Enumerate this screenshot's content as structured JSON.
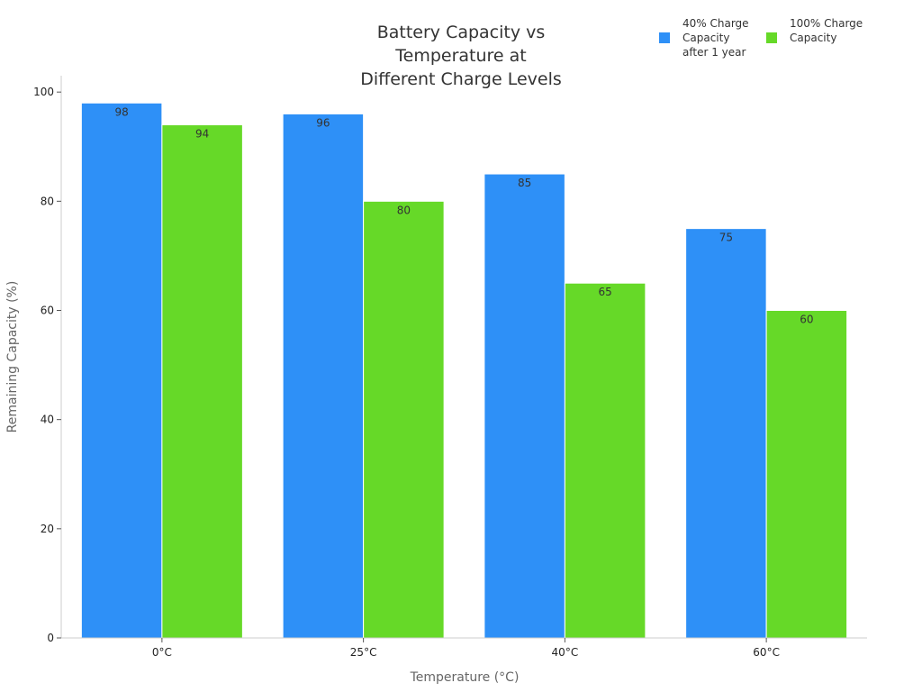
{
  "chart_data": {
    "type": "bar",
    "title": "Battery Capacity vs Temperature at Different Charge Levels",
    "title_lines": [
      "Battery Capacity vs",
      "Temperature at",
      "Different Charge Levels"
    ],
    "xlabel": "Temperature (°C)",
    "ylabel": "Remaining Capacity (%)",
    "categories": [
      "0°C",
      "25°C",
      "40°C",
      "60°C"
    ],
    "ylim": [
      0,
      103
    ],
    "yticks": [
      0,
      20,
      40,
      60,
      80,
      100
    ],
    "series": [
      {
        "name": "40% Charge Capacity after 1 year",
        "legend_lines": [
          "40% Charge",
          "Capacity",
          "after 1 year"
        ],
        "color": "#2e90f7",
        "values": [
          98,
          96,
          85,
          75
        ]
      },
      {
        "name": "100% Charge Capacity",
        "legend_lines": [
          "100% Charge",
          "Capacity"
        ],
        "color": "#66d928",
        "values": [
          94,
          80,
          65,
          60
        ]
      }
    ],
    "grid": false,
    "legend": "top-right",
    "data_labels": true
  }
}
